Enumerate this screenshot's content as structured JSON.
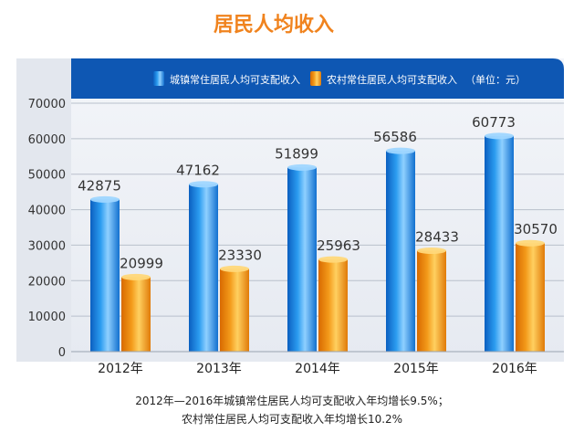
{
  "chart_data": {
    "type": "bar",
    "title": "居民人均收入",
    "categories": [
      "2012年",
      "2013年",
      "2014年",
      "2015年",
      "2016年"
    ],
    "series": [
      {
        "name": "城镇常住居民人均可支配收入",
        "values": [
          42875,
          47162,
          51899,
          56586,
          60773
        ],
        "color": "#1e8ee6"
      },
      {
        "name": "农村常住居民人均可支配收入",
        "values": [
          20999,
          23330,
          25963,
          28433,
          30570
        ],
        "color": "#f08a12"
      }
    ],
    "unit_note": "（单位：元）",
    "ylim": [
      0,
      70000
    ],
    "yticks": [
      0,
      10000,
      20000,
      30000,
      40000,
      50000,
      60000,
      70000
    ],
    "xlabel": "",
    "ylabel": "",
    "grid": true,
    "legend_position": "top",
    "footnotes": [
      "2012年—2016年城镇常住居民人均可支配收入年均增长9.5%；",
      "农村常住居民人均可支配收入年均增长10.2%"
    ],
    "colors": {
      "title": "#f0831e",
      "banner": "#0e57b3",
      "panel": "#eef1f6"
    }
  }
}
